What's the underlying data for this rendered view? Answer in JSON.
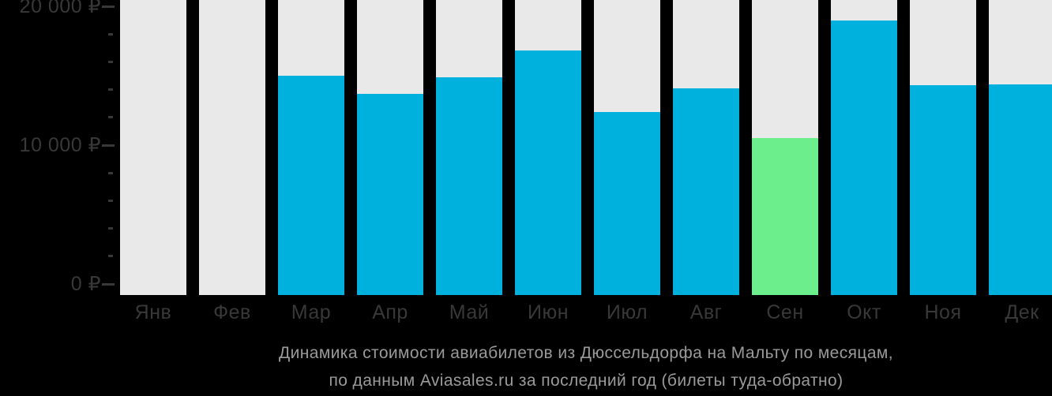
{
  "chart_data": {
    "type": "bar",
    "title": "Динамика стоимости авиабилетов из Дюссельдорфа на Мальту по месяцам, по данным Aviasales.ru за последний год (билеты туда-обратно)",
    "title_line1": "Динамика стоимости авиабилетов из Дюссельдорфа на Мальту по месяцам,",
    "title_line2": "по данным Aviasales.ru за последний год (билеты туда-обратно)",
    "categories": [
      "Янв",
      "Фев",
      "Мар",
      "Апр",
      "Май",
      "Июн",
      "Июл",
      "Авг",
      "Сен",
      "Окт",
      "Ноя",
      "Дек"
    ],
    "values": [
      null,
      null,
      15000,
      13700,
      14900,
      16800,
      12400,
      14100,
      10500,
      19000,
      14300,
      14400
    ],
    "currency": "₽",
    "highlighted_category": "Сен",
    "highlighted_value": 10500,
    "xlabel": "",
    "ylabel": "",
    "y_axis": {
      "min": 0,
      "max": 20000,
      "major_tick_values": [
        0,
        10000,
        20000
      ],
      "major_tick_labels": [
        "0 ₽",
        "10 000 ₽",
        "20 000 ₽"
      ],
      "minor_tick_step": 2000
    },
    "legend": "none",
    "grid": "off",
    "colors": {
      "bar": "#00b1de",
      "highlight_bar": "#6bee8b",
      "column_background": "#e9e9e9",
      "page_background": "#000000",
      "axis_text": "#383838",
      "title_text": "#9a9a9a"
    }
  }
}
